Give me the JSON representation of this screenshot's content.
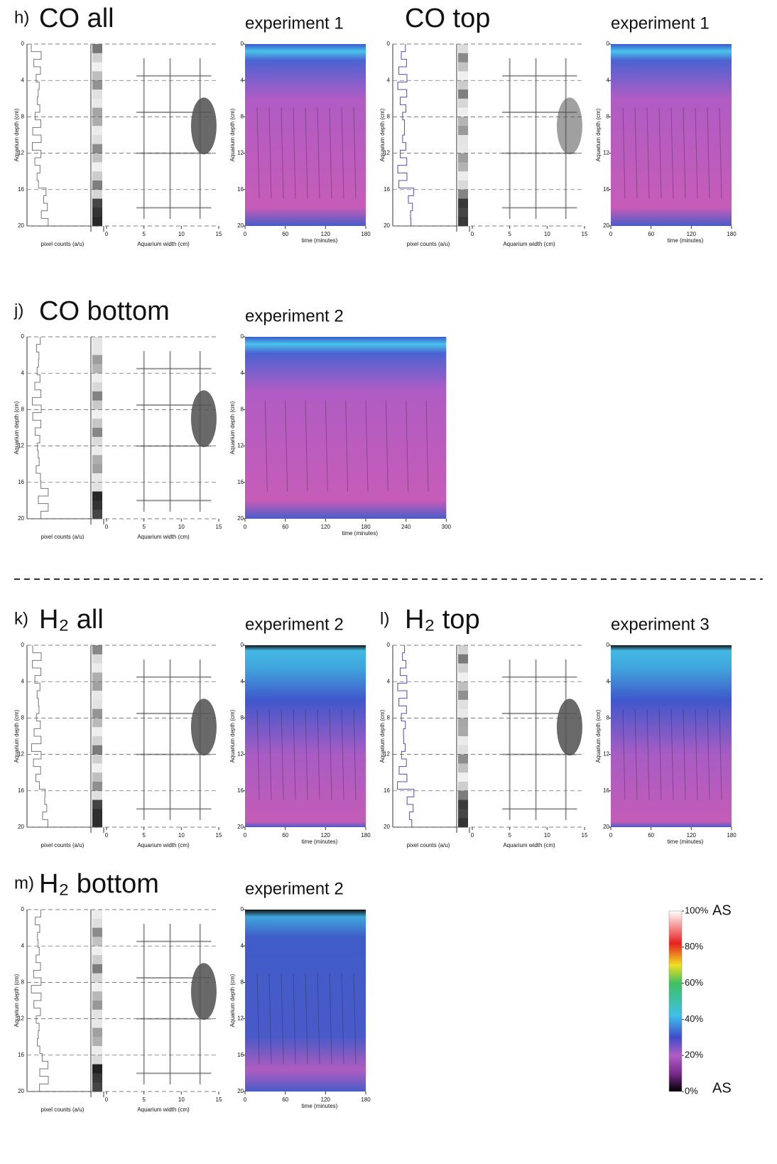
{
  "axis_labels": {
    "depth": "Aquarium depth (cm)",
    "pixel": "pixel counts (a/u)",
    "width": "Aquarium width (cm)",
    "time": "time (minutes)"
  },
  "depth_lim": [
    0,
    20
  ],
  "width_lim": [
    0,
    15
  ],
  "panels": [
    {
      "letter": "h)",
      "title": "CO all",
      "experiment": "experiment 1",
      "depth_ticks": [
        0,
        4,
        8,
        12,
        16,
        20
      ],
      "width_ticks": [
        0,
        5,
        10,
        15
      ],
      "time_lim": [
        0,
        180
      ],
      "time_ticks": [
        0,
        60,
        120,
        180
      ]
    },
    {
      "title": "CO top",
      "experiment": "experiment 1",
      "depth_ticks": [
        0,
        4,
        8,
        12,
        16,
        20
      ],
      "width_ticks": [
        0,
        5,
        10,
        15
      ],
      "time_lim": [
        0,
        180
      ],
      "time_ticks": [
        0,
        60,
        120,
        180
      ]
    },
    {
      "letter": "j)",
      "title": "CO bottom",
      "experiment": "experiment 2",
      "depth_ticks": [
        0,
        4,
        8,
        12,
        16,
        20
      ],
      "width_ticks": [
        0,
        5,
        10,
        15
      ],
      "time_lim": [
        0,
        300
      ],
      "time_ticks": [
        0,
        60,
        120,
        180,
        240,
        300
      ]
    },
    {
      "letter": "k)",
      "title": "H₂ all",
      "experiment": "experiment 2",
      "depth_ticks": [
        0,
        4,
        8,
        12,
        16,
        20
      ],
      "width_ticks": [
        0,
        5,
        10,
        15
      ],
      "time_lim": [
        0,
        180
      ],
      "time_ticks": [
        0,
        60,
        120,
        180
      ]
    },
    {
      "letter": "l)",
      "title": "H₂ top",
      "experiment": "experiment 3",
      "depth_ticks": [
        0,
        4,
        8,
        12,
        16,
        20
      ],
      "width_ticks": [
        0,
        5,
        10,
        15
      ],
      "time_lim": [
        0,
        180
      ],
      "time_ticks": [
        0,
        60,
        120,
        180
      ]
    },
    {
      "letter": "m)",
      "title": "H₂ bottom",
      "experiment": "experiment 2",
      "depth_ticks": [
        0,
        4,
        8,
        12,
        16,
        20
      ],
      "width_ticks": [
        0,
        5,
        10,
        15
      ],
      "time_lim": [
        0,
        180
      ],
      "time_ticks": [
        0,
        60,
        120,
        180
      ]
    }
  ],
  "color_scale": {
    "lim": [
      0,
      100
    ],
    "unit": "AS",
    "ticks": [
      {
        "value": 100,
        "label": "100%"
      },
      {
        "value": 80,
        "label": "80%"
      },
      {
        "value": 60,
        "label": "60%"
      },
      {
        "value": 40,
        "label": "40%"
      },
      {
        "value": 20,
        "label": "20%"
      },
      {
        "value": 0,
        "label": "0%"
      }
    ]
  }
}
